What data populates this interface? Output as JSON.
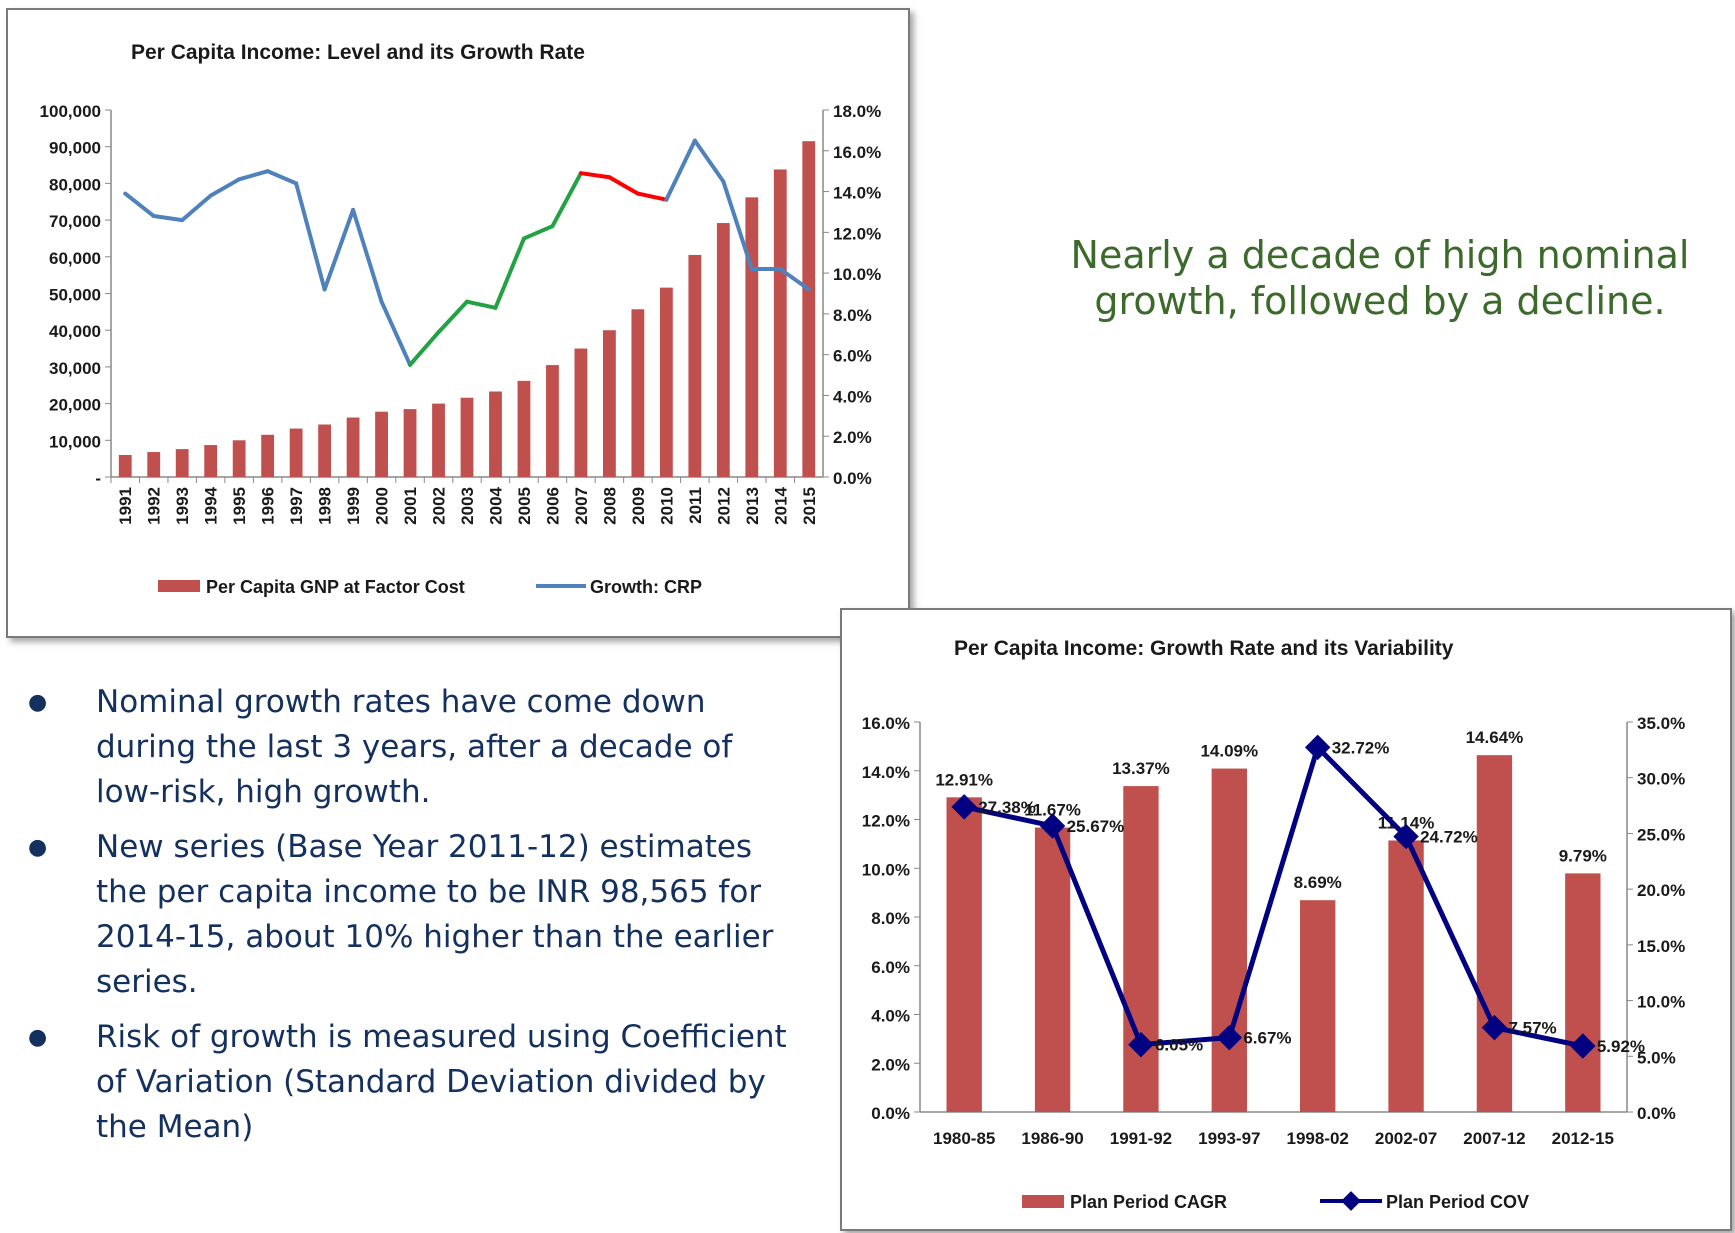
{
  "headline": "Nearly a decade of high nominal growth, followed by a decline.",
  "bullets": [
    "Nominal growth rates have come down during the last 3 years, after a decade of low-risk, high growth.",
    "New series (Base Year 2011-12) estimates the per capita income to be INR 98,565 for 2014-15, about 10% higher than the earlier series.",
    "Risk of growth is measured using Coefficient of Variation (Standard Deviation divided by the Mean)"
  ],
  "chart_data": [
    {
      "type": "bar",
      "title": "Per Capita Income: Level and its Growth Rate",
      "categories": [
        "1991",
        "1992",
        "1993",
        "1994",
        "1995",
        "1996",
        "1997",
        "1998",
        "1999",
        "2000",
        "2001",
        "2002",
        "2003",
        "2004",
        "2005",
        "2006",
        "2007",
        "2008",
        "2009",
        "2010",
        "2011",
        "2012",
        "2013",
        "2014",
        "2015"
      ],
      "series": [
        {
          "name": "Per Capita GNP at Factor Cost",
          "type": "bar",
          "axis": "left",
          "color": "#c0504d",
          "values": [
            6000,
            6800,
            7600,
            8700,
            10000,
            11500,
            13200,
            14300,
            16200,
            17800,
            18500,
            20000,
            21600,
            23300,
            26200,
            30500,
            35000,
            40000,
            45700,
            51600,
            60500,
            69200,
            76200,
            83800,
            91500
          ]
        },
        {
          "name": "Growth: CRP",
          "type": "line",
          "axis": "right",
          "color": "#4f81bd",
          "values": [
            13.9,
            12.8,
            12.6,
            13.8,
            14.6,
            15.0,
            14.4,
            9.2,
            13.1,
            8.6,
            5.5,
            7.1,
            8.6,
            8.3,
            11.7,
            12.3,
            14.9,
            14.7,
            13.9,
            13.6,
            16.5,
            14.5,
            10.2,
            10.2,
            9.2
          ],
          "segment_colors": [
            {
              "from": "2001",
              "to": "2007",
              "color": "#21a243"
            },
            {
              "from": "2007",
              "to": "2010",
              "color": "#ff0000"
            }
          ]
        }
      ],
      "ylim_left": [
        0,
        100000
      ],
      "yticks_left": [
        "-",
        "10,000",
        "20,000",
        "30,000",
        "40,000",
        "50,000",
        "60,000",
        "70,000",
        "80,000",
        "90,000",
        "100,000"
      ],
      "ylim_right": [
        0,
        18
      ],
      "yticks_right": [
        "0.0%",
        "2.0%",
        "4.0%",
        "6.0%",
        "8.0%",
        "10.0%",
        "12.0%",
        "14.0%",
        "16.0%",
        "18.0%"
      ],
      "legend": "bottom",
      "grid": false
    },
    {
      "type": "bar",
      "title": "Per Capita Income: Growth Rate and its Variability",
      "categories": [
        "1980-85",
        "1986-90",
        "1991-92",
        "1993-97",
        "1998-02",
        "2002-07",
        "2007-12",
        "2012-15"
      ],
      "series": [
        {
          "name": "Plan Period CAGR",
          "type": "bar",
          "axis": "left",
          "color": "#c0504d",
          "values": [
            12.91,
            11.67,
            13.37,
            14.09,
            8.69,
            11.14,
            14.64,
            9.79
          ],
          "labels": [
            "12.91%",
            "11.67%",
            "13.37%",
            "14.09%",
            "8.69%",
            "11.14%",
            "14.64%",
            "9.79%"
          ]
        },
        {
          "name": "Plan Period COV",
          "type": "line",
          "axis": "right",
          "color": "#000080",
          "values": [
            27.38,
            25.67,
            6.05,
            6.67,
            32.72,
            24.72,
            7.57,
            5.92
          ],
          "labels": [
            "27.38%",
            "25.67%",
            "6.05%",
            "6.67%",
            "32.72%",
            "24.72%",
            "7.57%",
            "5.92%"
          ]
        }
      ],
      "ylim_left": [
        0,
        16
      ],
      "yticks_left": [
        "0.0%",
        "2.0%",
        "4.0%",
        "6.0%",
        "8.0%",
        "10.0%",
        "12.0%",
        "14.0%",
        "16.0%"
      ],
      "ylim_right": [
        0,
        35
      ],
      "yticks_right": [
        "0.0%",
        "5.0%",
        "10.0%",
        "15.0%",
        "20.0%",
        "25.0%",
        "30.0%",
        "35.0%"
      ],
      "legend": "bottom",
      "grid": false
    }
  ]
}
